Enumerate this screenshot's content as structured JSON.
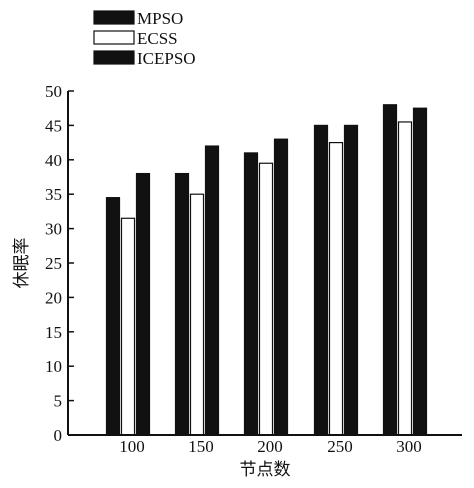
{
  "chart_data": {
    "type": "bar",
    "categories": [
      "100",
      "150",
      "200",
      "250",
      "300"
    ],
    "series": [
      {
        "name": "MPSO",
        "values": [
          34.5,
          38,
          41,
          45,
          48
        ],
        "color": "#111111",
        "pattern": "solid"
      },
      {
        "name": "ECSS",
        "values": [
          31.5,
          35,
          39.5,
          42.5,
          45.5
        ],
        "color": "#ffffff",
        "pattern": "hollow"
      },
      {
        "name": "ICEPSO",
        "values": [
          38,
          42,
          43,
          45,
          47.5
        ],
        "color": "#111111",
        "pattern": "solid"
      }
    ],
    "xlabel": "节点数",
    "ylabel": "休眠率",
    "ylim": [
      0,
      50
    ],
    "yticks": [
      0,
      5,
      10,
      15,
      20,
      25,
      30,
      35,
      40,
      45,
      50
    ],
    "legend_position": "top-left",
    "grid": false
  }
}
